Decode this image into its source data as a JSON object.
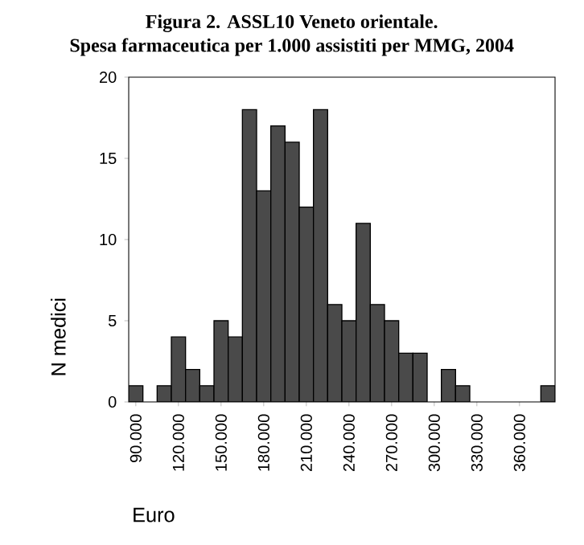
{
  "chart_data": {
    "type": "histogram",
    "title": "Figura 2. ASSL10 Veneto orientale.",
    "subtitle": "Spesa farmaceutica per 1.000 assistiti per MMG, 2004",
    "xlabel": "Euro",
    "ylabel": "N medici",
    "bins": [
      85000,
      95000,
      105000,
      115000,
      125000,
      135000,
      145000,
      155000,
      165000,
      175000,
      185000,
      195000,
      205000,
      215000,
      225000,
      235000,
      245000,
      255000,
      265000,
      275000,
      285000,
      295000,
      305000,
      315000,
      325000,
      335000,
      345000,
      355000,
      365000,
      375000,
      385000
    ],
    "values": [
      1,
      0,
      1,
      4,
      2,
      1,
      5,
      4,
      18,
      13,
      17,
      16,
      12,
      18,
      6,
      5,
      11,
      6,
      5,
      3,
      3,
      0,
      2,
      1,
      0,
      0,
      0,
      0,
      0,
      1
    ],
    "color": "#4a4a4a",
    "xlim": [
      85000,
      385000
    ],
    "xticks": [
      {
        "value": 90000,
        "label": "90.000"
      },
      {
        "value": 120000,
        "label": "120.000"
      },
      {
        "value": 150000,
        "label": "150.000"
      },
      {
        "value": 180000,
        "label": "180.000"
      },
      {
        "value": 210000,
        "label": "210.000"
      },
      {
        "value": 240000,
        "label": "240.000"
      },
      {
        "value": 270000,
        "label": "270.000"
      },
      {
        "value": 300000,
        "label": "300.000"
      },
      {
        "value": 330000,
        "label": "330.000"
      },
      {
        "value": 360000,
        "label": "360.000"
      }
    ],
    "ylim": [
      0,
      20
    ],
    "yticks": [
      0,
      5,
      10,
      15,
      20
    ]
  }
}
